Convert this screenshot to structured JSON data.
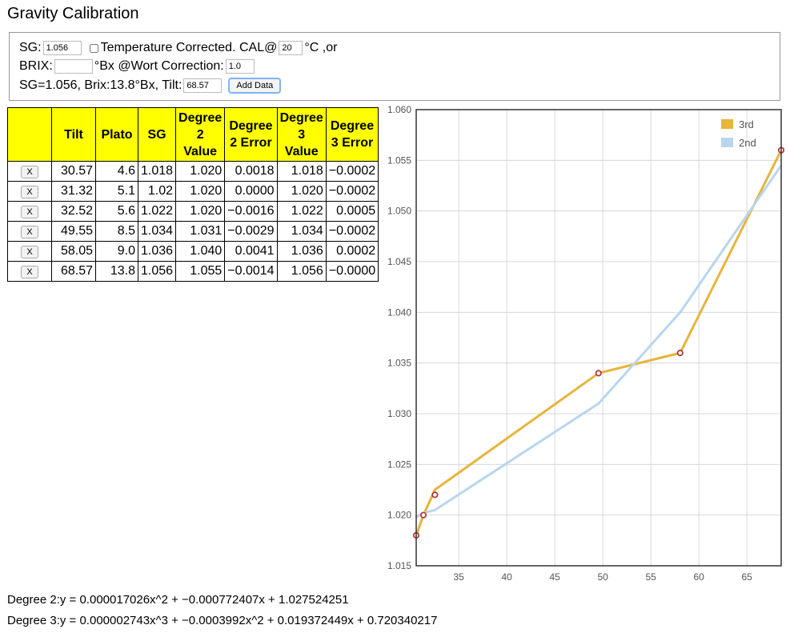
{
  "title": "Gravity Calibration",
  "controls": {
    "sg_label": "SG:",
    "sg_value": "1.056",
    "temp_label": "Temperature Corrected. CAL@",
    "temp_value": "20",
    "temp_unit": "°C ,or",
    "brix_label": "BRIX:",
    "brix_value": "",
    "brix_unit": "°Bx @Wort Correction:",
    "wort_correction": "1.0",
    "summary": "SG=1.056, Brix:13.8°Bx, Tilt:",
    "tilt_value": "68.57",
    "add_button": "Add Data"
  },
  "table": {
    "headers": [
      "",
      "Tilt",
      "Plato",
      "SG",
      "Degree 2 Value",
      "Degree 2 Error",
      "Degree 3 Value",
      "Degree 3 Error"
    ],
    "delete_label": "X",
    "rows": [
      [
        "30.57",
        "4.6",
        "1.018",
        "1.020",
        "0.0018",
        "1.018",
        "−0.0002"
      ],
      [
        "31.32",
        "5.1",
        "1.02",
        "1.020",
        "0.0000",
        "1.020",
        "−0.0002"
      ],
      [
        "32.52",
        "5.6",
        "1.022",
        "1.020",
        "−0.0016",
        "1.022",
        "0.0005"
      ],
      [
        "49.55",
        "8.5",
        "1.034",
        "1.031",
        "−0.0029",
        "1.034",
        "−0.0002"
      ],
      [
        "58.05",
        "9.0",
        "1.036",
        "1.040",
        "0.0041",
        "1.036",
        "0.0002"
      ],
      [
        "68.57",
        "13.8",
        "1.056",
        "1.055",
        "−0.0014",
        "1.056",
        "−0.0000"
      ]
    ]
  },
  "chart_data": {
    "type": "line",
    "xlim": [
      30.57,
      68.57
    ],
    "ylim": [
      1.015,
      1.06
    ],
    "x_ticks": [
      35,
      40,
      45,
      50,
      55,
      60,
      65
    ],
    "y_ticks": [
      1.015,
      1.02,
      1.025,
      1.03,
      1.035,
      1.04,
      1.045,
      1.05,
      1.055,
      1.06
    ],
    "y_tick_labels": [
      "1.015",
      "1.020",
      "1.025",
      "1.030",
      "1.035",
      "1.040",
      "1.045",
      "1.050",
      "1.055",
      "1.060"
    ],
    "grid": true,
    "legend_position": "top-right",
    "x": [
      30.57,
      31.32,
      32.52,
      49.55,
      58.05,
      68.57
    ],
    "points": [
      1.018,
      1.02,
      1.022,
      1.034,
      1.036,
      1.056
    ],
    "series": [
      {
        "name": "3rd",
        "color": "#e6b53a",
        "values": [
          1.018,
          1.02,
          1.0225,
          1.034,
          1.036,
          1.056
        ]
      },
      {
        "name": "2nd",
        "color": "#b8d6ee",
        "values": [
          1.0198,
          1.0202,
          1.0205,
          1.031,
          1.04,
          1.0545
        ]
      }
    ],
    "point_color": "#b33a3a"
  },
  "equations": [
    "Degree 2:y = 0.000017026x^2 + −0.000772407x + 1.027524251",
    "Degree 3:y = 0.000002743x^3 + −0.0003992x^2 + 0.019372449x + 0.720340217"
  ]
}
